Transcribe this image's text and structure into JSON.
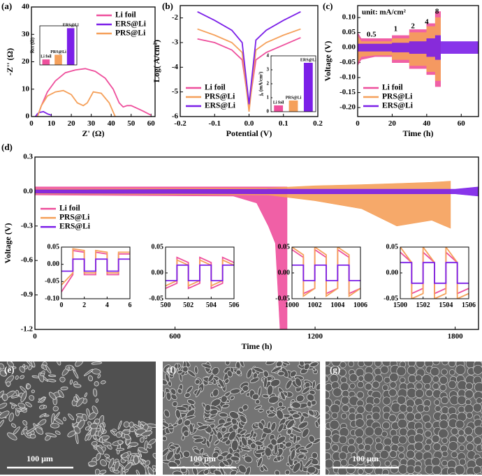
{
  "chart_data": [
    {
      "type": "line",
      "label": "(a)",
      "x_label": "Z' (Ω)",
      "y_label": "-Z'' (Ω)",
      "xlim": [
        0,
        62
      ],
      "xticks": [
        0,
        10,
        20,
        30,
        40,
        50,
        60
      ],
      "ylim": [
        0,
        40
      ],
      "yticks": [
        0,
        10,
        20,
        30,
        40
      ],
      "legend": "upper right",
      "series": [
        {
          "name": "Li foil",
          "color": "#ee4f9c",
          "x": [
            3,
            5,
            8,
            12,
            17,
            22,
            27,
            32,
            37,
            41,
            44,
            46,
            48,
            50,
            53,
            56,
            60
          ],
          "values": [
            0,
            4,
            9,
            13,
            16,
            17,
            17.5,
            16.5,
            14,
            10,
            5,
            3.5,
            4,
            4,
            3,
            2,
            0.5
          ]
        },
        {
          "name": "ERS@Li",
          "color": "#7b1fe8",
          "x": [
            2,
            3,
            4,
            6,
            8,
            10
          ],
          "values": [
            0,
            1,
            1.5,
            1.8,
            1,
            0.5
          ]
        },
        {
          "name": "PRS@Li",
          "color": "#f5a05a",
          "x": [
            3,
            5,
            8,
            12,
            16,
            20,
            23,
            26,
            28,
            31,
            35,
            39,
            42
          ],
          "values": [
            0,
            4,
            7.5,
            9,
            9.5,
            8,
            5,
            4,
            5,
            9,
            8.5,
            5,
            0
          ]
        }
      ],
      "inset": {
        "type": "bar",
        "y_label": "Rct (Ω)",
        "categories": [
          "Li foil",
          "PRS@Li",
          "ERS@Li"
        ],
        "values": [
          7,
          13,
          47
        ],
        "colors": [
          "#ee4f9c",
          "#f5a05a",
          "#7b1fe8"
        ],
        "ylim": [
          0,
          50
        ]
      }
    },
    {
      "type": "line",
      "label": "(b)",
      "x_label": "Potential (V)",
      "y_label": "Log( A/cm²)",
      "xlim": [
        -0.2,
        0.2
      ],
      "xticks": [
        -0.2,
        -0.1,
        {
          "value": 0,
          "label": "0.0"
        },
        0.1,
        0.2
      ],
      "ylim": [
        -6,
        -1.5
      ],
      "yticks": [
        -6,
        -5,
        -4,
        -3,
        -2
      ],
      "legend": "lower left",
      "series": [
        {
          "name": "Li foil",
          "color": "#ee4f9c",
          "x": [
            -0.15,
            -0.1,
            -0.05,
            -0.02,
            0,
            0.02,
            0.05,
            0.1,
            0.15
          ],
          "values": [
            -2.85,
            -3.0,
            -3.3,
            -3.7,
            -5.6,
            -3.7,
            -3.4,
            -3.1,
            -2.8
          ]
        },
        {
          "name": "PRS@Li",
          "color": "#f5a05a",
          "x": [
            -0.15,
            -0.1,
            -0.05,
            -0.02,
            0,
            0.02,
            0.05,
            0.1,
            0.15
          ],
          "values": [
            -2.45,
            -2.7,
            -3.0,
            -3.4,
            -5.8,
            -3.3,
            -3.0,
            -2.7,
            -2.45
          ]
        },
        {
          "name": "ERS@Li",
          "color": "#7b1fe8",
          "x": [
            -0.15,
            -0.1,
            -0.05,
            -0.02,
            0,
            0.02,
            0.05,
            0.1,
            0.15
          ],
          "values": [
            -1.75,
            -2.1,
            -2.5,
            -3.0,
            -5.5,
            -2.9,
            -2.5,
            -2.1,
            -1.75
          ]
        }
      ],
      "inset": {
        "type": "bar",
        "y_label": "j₀ (mA/cm²)",
        "categories": [
          "Li foil",
          "PRS@Li",
          "ERS@Li"
        ],
        "values": [
          0.45,
          0.8,
          3.5
        ],
        "colors": [
          "#ee4f9c",
          "#f5a05a",
          "#7b1fe8"
        ],
        "ylim": [
          0,
          4
        ],
        "yticks": [
          0,
          1,
          2,
          3,
          4
        ]
      }
    },
    {
      "type": "band",
      "label": "(c)",
      "x_label": "Time (h)",
      "y_label": "Voltage (V)",
      "unit_note": "unit: mA/cm²",
      "current_densities": [
        0.5,
        1,
        2,
        4,
        8
      ],
      "xlim": [
        0,
        70
      ],
      "xticks": [
        0,
        20,
        40,
        60
      ],
      "ylim": [
        -0.23,
        0.14
      ],
      "yticks": [
        {
          "value": -0.2,
          "label": "-0.20"
        },
        -0.15,
        {
          "value": -0.1,
          "label": "-0.10"
        },
        -0.05,
        {
          "value": 0,
          "label": "0.00"
        },
        0.05,
        {
          "value": 0.1,
          "label": "0.10"
        }
      ],
      "legend": "lower left",
      "series": [
        {
          "name": "Li foil",
          "color": "#ee4f9c",
          "x": [
            0,
            2,
            10,
            20,
            20,
            30,
            30,
            40,
            40,
            45,
            45,
            48
          ],
          "upper": [
            0.05,
            0.03,
            0.03,
            0.03,
            0.04,
            0.04,
            0.06,
            0.06,
            0.08,
            0.08,
            0.12,
            0.12
          ],
          "lower": [
            -0.06,
            -0.04,
            -0.03,
            -0.03,
            -0.05,
            -0.05,
            -0.07,
            -0.07,
            -0.09,
            -0.09,
            -0.13,
            -0.13
          ]
        },
        {
          "name": "PRS@Li",
          "color": "#f5a05a",
          "x": [
            0,
            2,
            10,
            20,
            20,
            30,
            30,
            40,
            40,
            45,
            45,
            48
          ],
          "upper": [
            0.04,
            0.02,
            0.02,
            0.02,
            0.03,
            0.03,
            0.05,
            0.05,
            0.07,
            0.07,
            0.1,
            0.1
          ],
          "lower": [
            -0.05,
            -0.03,
            -0.025,
            -0.025,
            -0.04,
            -0.04,
            -0.06,
            -0.06,
            -0.08,
            -0.08,
            -0.11,
            -0.11
          ]
        },
        {
          "name": "ERS@Li",
          "color": "#7b1fe8",
          "x": [
            0,
            20,
            20,
            30,
            30,
            40,
            40,
            45,
            45,
            48,
            48,
            70
          ],
          "upper": [
            0.012,
            0.012,
            0.015,
            0.015,
            0.02,
            0.02,
            0.03,
            0.03,
            0.04,
            0.04,
            0.02,
            0.02
          ],
          "lower": [
            -0.012,
            -0.012,
            -0.015,
            -0.015,
            -0.02,
            -0.02,
            -0.03,
            -0.03,
            -0.04,
            -0.04,
            -0.02,
            -0.02
          ]
        }
      ]
    },
    {
      "type": "band",
      "label": "(d)",
      "x_label": "Time (h)",
      "y_label": "Voltage (V)",
      "xlim": [
        0,
        1900
      ],
      "xticks": [
        0,
        600,
        1200,
        1800
      ],
      "ylim": [
        -1.2,
        0.3
      ],
      "yticks": [
        0.3,
        {
          "value": 0,
          "label": "0.0"
        },
        -0.3,
        -0.6,
        -0.9,
        -1.2
      ],
      "legend": "center left",
      "series": [
        {
          "name": "Li foil",
          "color": "#ee4f9c",
          "x": [
            0,
            850,
            950,
            1000,
            1030,
            1050,
            1080
          ],
          "upper": [
            0.04,
            0.04,
            0.04,
            0.04,
            0.04,
            0.04,
            0.04
          ],
          "lower": [
            -0.03,
            -0.04,
            -0.1,
            -0.3,
            -0.45,
            -1.2,
            -1.2
          ]
        },
        {
          "name": "PRS@Li",
          "color": "#f5a05a",
          "x": [
            0,
            1000,
            1200,
            1400,
            1550,
            1700,
            1780
          ],
          "upper": [
            0.02,
            0.03,
            0.05,
            0.06,
            0.07,
            0.08,
            0.09
          ],
          "lower": [
            -0.02,
            -0.03,
            -0.08,
            -0.15,
            -0.3,
            -0.25,
            -0.32
          ]
        },
        {
          "name": "ERS@Li",
          "color": "#7b1fe8",
          "x": [
            0,
            1000,
            1800,
            1900
          ],
          "upper": [
            0.015,
            0.02,
            0.02,
            0.04
          ],
          "lower": [
            -0.015,
            -0.02,
            -0.02,
            -0.04
          ]
        }
      ],
      "insets": [
        {
          "xlim": [
            0,
            6
          ],
          "xticks": [
            0,
            2,
            4,
            6
          ],
          "ylim": [
            -0.1,
            0.05
          ],
          "yticks": [
            0.05,
            {
              "value": 0,
              "label": "0.00"
            },
            -0.05,
            {
              "value": -0.1,
              "label": "-0.10"
            }
          ],
          "x": [
            0,
            1,
            1,
            2,
            2,
            3,
            3,
            4,
            4,
            5,
            5,
            6
          ],
          "series": [
            {
              "color": "#ee4f9c",
              "values": [
                -0.08,
                -0.03,
                0.04,
                0.035,
                -0.03,
                -0.03,
                0.035,
                0.03,
                -0.03,
                -0.03,
                0.03,
                0.03
              ]
            },
            {
              "color": "#f5a05a",
              "values": [
                -0.06,
                -0.025,
                0.045,
                0.04,
                -0.025,
                -0.025,
                0.04,
                0.035,
                -0.025,
                -0.025,
                0.035,
                0.035
              ]
            },
            {
              "color": "#7b1fe8",
              "values": [
                -0.02,
                -0.02,
                0.015,
                0.015,
                -0.02,
                -0.02,
                0.015,
                0.015,
                -0.02,
                -0.02,
                0.015,
                0.015
              ]
            }
          ]
        },
        {
          "xlim": [
            500,
            506
          ],
          "xticks": [
            500,
            502,
            504,
            506
          ],
          "ylim": [
            -0.05,
            0.05
          ],
          "yticks": [
            0.05,
            {
              "value": 0,
              "label": "0.00"
            },
            -0.05
          ],
          "x": [
            500,
            501,
            501,
            502,
            502,
            503,
            503,
            504,
            504,
            505,
            505,
            506
          ],
          "series": [
            {
              "color": "#ee4f9c",
              "values": [
                -0.03,
                -0.02,
                0.03,
                0.02,
                -0.03,
                -0.02,
                0.03,
                0.02,
                -0.03,
                -0.02,
                0.03,
                0.02
              ]
            },
            {
              "color": "#f5a05a",
              "values": [
                -0.025,
                -0.015,
                0.025,
                0.015,
                -0.025,
                -0.015,
                0.025,
                0.015,
                -0.025,
                -0.015,
                0.025,
                0.015
              ]
            },
            {
              "color": "#7b1fe8",
              "values": [
                -0.015,
                -0.015,
                0.015,
                0.015,
                -0.015,
                -0.015,
                0.015,
                0.015,
                -0.015,
                -0.015,
                0.015,
                0.015
              ]
            }
          ]
        },
        {
          "xlim": [
            1000,
            1006
          ],
          "xticks": [
            1000,
            1002,
            1004,
            1006
          ],
          "ylim": [
            -0.05,
            0.05
          ],
          "yticks": [
            0.05,
            {
              "value": 0,
              "label": "0.00"
            },
            -0.05
          ],
          "x": [
            1000,
            1001,
            1001,
            1002,
            1002,
            1003,
            1003,
            1004,
            1004,
            1005,
            1005,
            1006
          ],
          "series": [
            {
              "color": "#ee4f9c",
              "values": [
                0.045,
                0.03,
                -0.04,
                -0.03,
                0.045,
                0.03,
                -0.04,
                -0.03,
                0.045,
                0.03,
                -0.04,
                -0.03
              ]
            },
            {
              "color": "#f5a05a",
              "values": [
                0.05,
                0.035,
                -0.045,
                -0.03,
                0.05,
                0.035,
                -0.045,
                -0.03,
                0.05,
                0.035,
                -0.045,
                -0.03
              ]
            },
            {
              "color": "#7b1fe8",
              "values": [
                0.015,
                0.015,
                -0.015,
                -0.015,
                0.015,
                0.015,
                -0.015,
                -0.015,
                0.015,
                0.015,
                -0.015,
                -0.015
              ]
            }
          ]
        },
        {
          "xlim": [
            1500,
            1506
          ],
          "xticks": [
            1500,
            1502,
            1504,
            1506
          ],
          "ylim": [
            -0.05,
            0.05
          ],
          "yticks": [
            0.05,
            {
              "value": 0,
              "label": "0.00"
            },
            -0.05
          ],
          "x": [
            1500,
            1501,
            1501,
            1502,
            1502,
            1503,
            1503,
            1504,
            1504,
            1505,
            1505,
            1506
          ],
          "series": [
            {
              "color": "#ee4f9c",
              "values": [
                0.04,
                0.02,
                -0.04,
                -0.03,
                0.04,
                0.02,
                -0.04,
                -0.03,
                0.04,
                0.02,
                -0.04,
                -0.03
              ]
            },
            {
              "color": "#f5a05a",
              "values": [
                0.05,
                0.02,
                -0.05,
                -0.04,
                0.05,
                0.02,
                -0.05,
                -0.04,
                0.05,
                0.02,
                -0.05,
                -0.04
              ]
            },
            {
              "color": "#7b1fe8",
              "values": [
                0.02,
                0.02,
                -0.02,
                -0.02,
                0.02,
                0.02,
                -0.02,
                -0.02,
                0.02,
                0.02,
                -0.02,
                -0.02
              ]
            }
          ]
        }
      ]
    }
  ],
  "images": [
    {
      "label": "(e)",
      "scale_bar": "100 μm"
    },
    {
      "label": "(f)",
      "scale_bar": "100 μm"
    },
    {
      "label": "(g)",
      "scale_bar": "100 μm"
    }
  ]
}
